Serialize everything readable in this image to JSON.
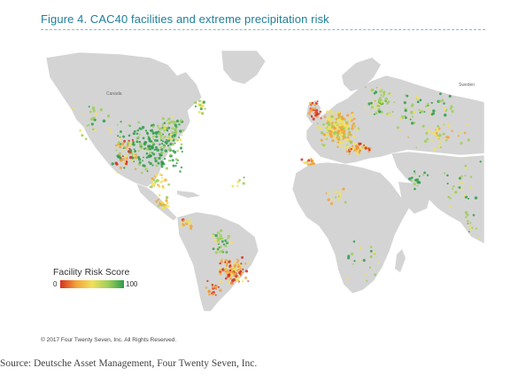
{
  "figure": {
    "title": "Figure 4. CAC40 facilities and extreme precipitation risk",
    "copyright": "© 2017 Four Twenty Seven, Inc. All Rights Reserved."
  },
  "legend": {
    "title": "Facility Risk Score",
    "min": "0",
    "max": "100",
    "colors": [
      "#d7301f",
      "#f1a33b",
      "#f1e05a",
      "#9fce5b",
      "#2e9d4a"
    ]
  },
  "map": {
    "land_color": "#d4d4d4",
    "water_color": "#ffffff",
    "place_labels": [
      "Canada",
      "Sweden"
    ]
  },
  "source": "Source: Deutsche Asset Management, Four Twenty Seven, Inc."
}
